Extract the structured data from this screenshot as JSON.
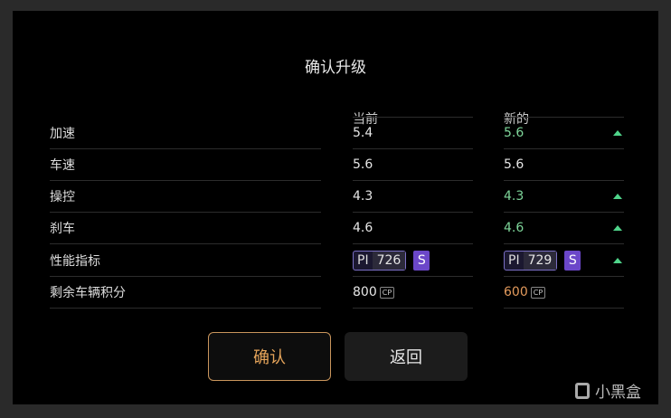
{
  "dialog": {
    "title": "确认升级",
    "col_current": "当前",
    "col_new": "新的"
  },
  "rows": [
    {
      "label": "加速",
      "current": "5.4",
      "new": "5.6",
      "improved": true
    },
    {
      "label": "车速",
      "current": "5.6",
      "new": "5.6",
      "improved": false
    },
    {
      "label": "操控",
      "current": "4.3",
      "new": "4.3",
      "improved": true
    },
    {
      "label": "刹车",
      "current": "4.6",
      "new": "4.6",
      "improved": true
    }
  ],
  "pi": {
    "label": "性能指标",
    "pi_key": "PI",
    "current": "726",
    "current_class": "S",
    "new": "729",
    "new_class": "S",
    "improved": true
  },
  "cp": {
    "label": "剩余车辆积分",
    "current": "800",
    "new": "600",
    "unit": "CP"
  },
  "buttons": {
    "confirm": "确认",
    "back": "返回"
  },
  "watermark": "小黑盒",
  "colors": {
    "improved": "#7ed69a",
    "arrow": "#4fd48a",
    "cost": "#e39a5c",
    "accent": "#e5a45a",
    "class_badge": "#6b47c9"
  }
}
